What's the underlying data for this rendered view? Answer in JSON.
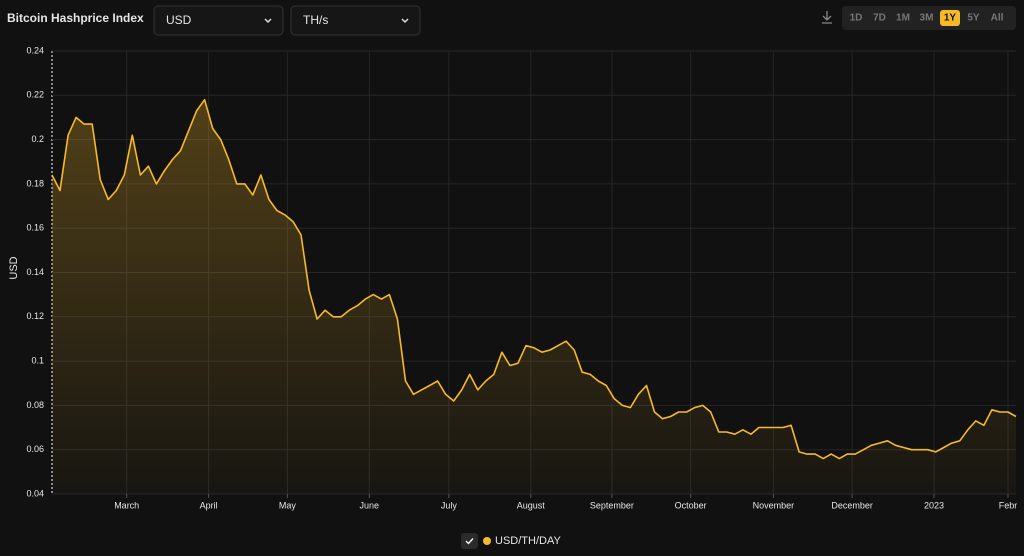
{
  "chart_data": {
    "type": "line",
    "title": "Bitcoin Hashprice Index",
    "currency": "USD",
    "unit": "TH/s",
    "ranges": [
      "1D",
      "7D",
      "1M",
      "3M",
      "1Y",
      "5Y",
      "All"
    ],
    "active_range": "1Y",
    "y_label": "USD",
    "series": [
      {
        "name": "USD/TH/DAY",
        "color": "#f7b928",
        "values": [
          0.184,
          0.177,
          0.202,
          0.21,
          0.207,
          0.207,
          0.182,
          0.173,
          0.177,
          0.184,
          0.202,
          0.184,
          0.188,
          0.18,
          0.186,
          0.191,
          0.195,
          0.204,
          0.213,
          0.218,
          0.205,
          0.2,
          0.191,
          0.18,
          0.18,
          0.175,
          0.184,
          0.173,
          0.168,
          0.166,
          0.163,
          0.157,
          0.132,
          0.119,
          0.123,
          0.12,
          0.12,
          0.123,
          0.125,
          0.128,
          0.13,
          0.128,
          0.13,
          0.119,
          0.091,
          0.085,
          0.087,
          0.089,
          0.091,
          0.085,
          0.082,
          0.087,
          0.094,
          0.087,
          0.091,
          0.094,
          0.104,
          0.098,
          0.099,
          0.107,
          0.106,
          0.104,
          0.105,
          0.107,
          0.109,
          0.105,
          0.095,
          0.094,
          0.091,
          0.089,
          0.083,
          0.08,
          0.079,
          0.085,
          0.089,
          0.077,
          0.074,
          0.075,
          0.077,
          0.077,
          0.079,
          0.08,
          0.077,
          0.068,
          0.068,
          0.067,
          0.069,
          0.067,
          0.07,
          0.07,
          0.07,
          0.07,
          0.071,
          0.059,
          0.058,
          0.058,
          0.056,
          0.058,
          0.056,
          0.058,
          0.058,
          0.06,
          0.062,
          0.063,
          0.064,
          0.062,
          0.061,
          0.06,
          0.06,
          0.06,
          0.059,
          0.061,
          0.063,
          0.064,
          0.069,
          0.073,
          0.071,
          0.078,
          0.077,
          0.077,
          0.075
        ]
      }
    ],
    "xlim": [
      0,
      120
    ],
    "xticks": [
      {
        "value": 9.3,
        "label": "March"
      },
      {
        "value": 19.5,
        "label": "April"
      },
      {
        "value": 29.3,
        "label": "May"
      },
      {
        "value": 39.5,
        "label": "June"
      },
      {
        "value": 49.4,
        "label": "July"
      },
      {
        "value": 59.6,
        "label": "August"
      },
      {
        "value": 69.7,
        "label": "September"
      },
      {
        "value": 79.5,
        "label": "October"
      },
      {
        "value": 89.8,
        "label": "November"
      },
      {
        "value": 99.6,
        "label": "December"
      },
      {
        "value": 109.8,
        "label": "2023"
      },
      {
        "value": 119.0,
        "label": "Febr"
      }
    ],
    "ylim": [
      0.04,
      0.24
    ],
    "yticks": [
      0.04,
      0.06,
      0.08,
      0.1,
      0.12,
      0.14,
      0.16,
      0.18,
      0.2,
      0.22,
      0.24
    ],
    "grid": true
  }
}
